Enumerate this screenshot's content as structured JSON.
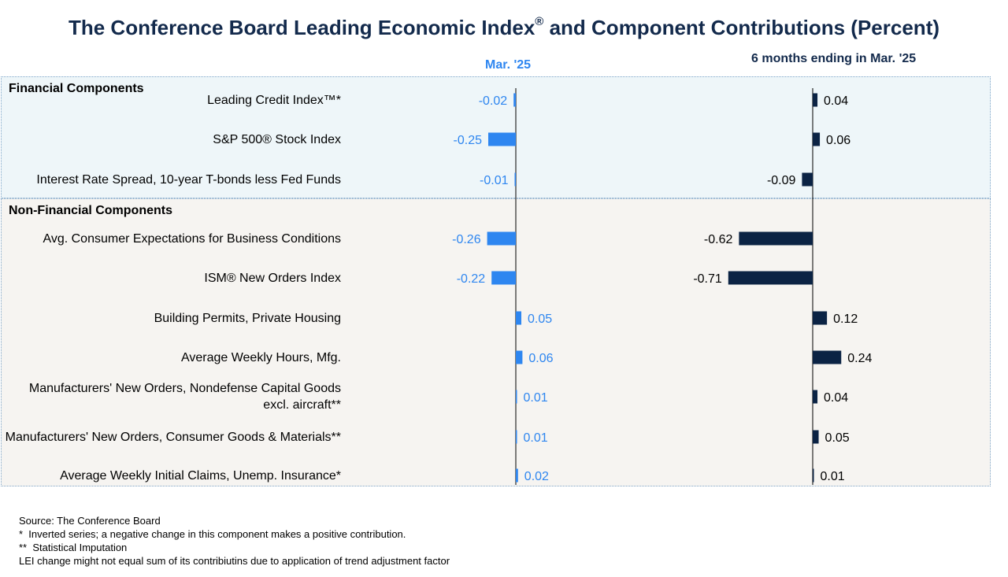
{
  "title": {
    "main": "The Conference Board Leading Economic Index",
    "sup": "®",
    "rest": " and Component Contributions (Percent)"
  },
  "columns": {
    "left": "Mar. '25",
    "right": "6 months ending in Mar. '25"
  },
  "colors": {
    "left_series": "#2e86f0",
    "right_series": "#0b2344",
    "title": "#132a4c",
    "financial_bg": "#eef6f9",
    "nonfinancial_bg": "#f6f4f1"
  },
  "sections": {
    "financial": "Financial Components",
    "nonfinancial": "Non-Financial Components"
  },
  "chart_data": {
    "type": "bar",
    "orientation": "horizontal",
    "categories": [
      "Leading Credit Index™*",
      "S&P 500® Stock Index",
      "Interest Rate Spread, 10-year T-bonds less Fed Funds",
      "Avg. Consumer Expectations for Business Conditions",
      "ISM® New Orders Index",
      "Building Permits, Private Housing",
      "Average Weekly Hours, Mfg.",
      "Manufacturers' New Orders, Nondefense Capital Goods excl. aircraft**",
      "Manufacturers' New Orders, Consumer Goods & Materials**",
      "Average Weekly Initial Claims, Unemp. Insurance*"
    ],
    "series": [
      {
        "name": "Mar. '25",
        "values": [
          -0.02,
          -0.25,
          -0.01,
          -0.26,
          -0.22,
          0.05,
          0.06,
          0.01,
          0.01,
          0.02
        ]
      },
      {
        "name": "6 months ending in Mar. '25",
        "values": [
          0.04,
          0.06,
          -0.09,
          -0.62,
          -0.71,
          0.12,
          0.24,
          0.04,
          0.05,
          0.01
        ]
      }
    ]
  },
  "notes": [
    "Source: The Conference Board",
    "*  Inverted series; a negative change in this component makes a positive contribution.",
    "**  Statistical Imputation",
    "LEI change might not equal sum of its contribiutins due to application of trend adjustment factor"
  ]
}
